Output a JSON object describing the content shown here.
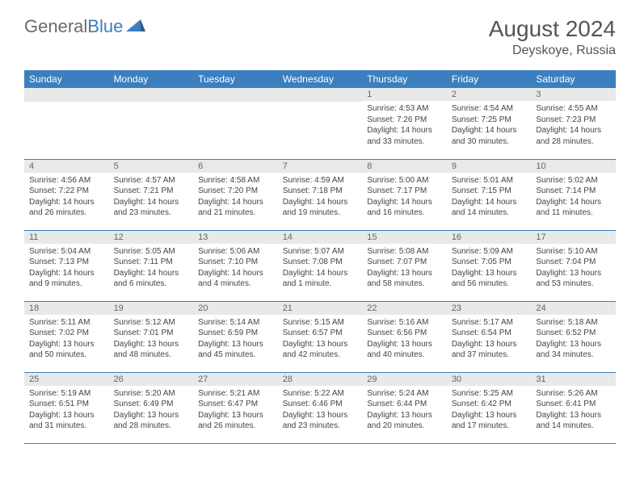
{
  "brand": {
    "part1": "General",
    "part2": "Blue"
  },
  "title": "August 2024",
  "location": "Deyskoye, Russia",
  "colors": {
    "header_bg": "#3b7fbf",
    "header_text": "#ffffff",
    "daynum_bg": "#e9e9e9",
    "row_border": "#3b7fbf",
    "body_text": "#444444",
    "brand_gray": "#6b6b6b",
    "brand_blue": "#3b7fbf"
  },
  "weekdays": [
    "Sunday",
    "Monday",
    "Tuesday",
    "Wednesday",
    "Thursday",
    "Friday",
    "Saturday"
  ],
  "weeks": [
    [
      {
        "n": ""
      },
      {
        "n": ""
      },
      {
        "n": ""
      },
      {
        "n": ""
      },
      {
        "n": "1",
        "sr": "4:53 AM",
        "ss": "7:26 PM",
        "dl": "14 hours and 33 minutes."
      },
      {
        "n": "2",
        "sr": "4:54 AM",
        "ss": "7:25 PM",
        "dl": "14 hours and 30 minutes."
      },
      {
        "n": "3",
        "sr": "4:55 AM",
        "ss": "7:23 PM",
        "dl": "14 hours and 28 minutes."
      }
    ],
    [
      {
        "n": "4",
        "sr": "4:56 AM",
        "ss": "7:22 PM",
        "dl": "14 hours and 26 minutes."
      },
      {
        "n": "5",
        "sr": "4:57 AM",
        "ss": "7:21 PM",
        "dl": "14 hours and 23 minutes."
      },
      {
        "n": "6",
        "sr": "4:58 AM",
        "ss": "7:20 PM",
        "dl": "14 hours and 21 minutes."
      },
      {
        "n": "7",
        "sr": "4:59 AM",
        "ss": "7:18 PM",
        "dl": "14 hours and 19 minutes."
      },
      {
        "n": "8",
        "sr": "5:00 AM",
        "ss": "7:17 PM",
        "dl": "14 hours and 16 minutes."
      },
      {
        "n": "9",
        "sr": "5:01 AM",
        "ss": "7:15 PM",
        "dl": "14 hours and 14 minutes."
      },
      {
        "n": "10",
        "sr": "5:02 AM",
        "ss": "7:14 PM",
        "dl": "14 hours and 11 minutes."
      }
    ],
    [
      {
        "n": "11",
        "sr": "5:04 AM",
        "ss": "7:13 PM",
        "dl": "14 hours and 9 minutes."
      },
      {
        "n": "12",
        "sr": "5:05 AM",
        "ss": "7:11 PM",
        "dl": "14 hours and 6 minutes."
      },
      {
        "n": "13",
        "sr": "5:06 AM",
        "ss": "7:10 PM",
        "dl": "14 hours and 4 minutes."
      },
      {
        "n": "14",
        "sr": "5:07 AM",
        "ss": "7:08 PM",
        "dl": "14 hours and 1 minute."
      },
      {
        "n": "15",
        "sr": "5:08 AM",
        "ss": "7:07 PM",
        "dl": "13 hours and 58 minutes."
      },
      {
        "n": "16",
        "sr": "5:09 AM",
        "ss": "7:05 PM",
        "dl": "13 hours and 56 minutes."
      },
      {
        "n": "17",
        "sr": "5:10 AM",
        "ss": "7:04 PM",
        "dl": "13 hours and 53 minutes."
      }
    ],
    [
      {
        "n": "18",
        "sr": "5:11 AM",
        "ss": "7:02 PM",
        "dl": "13 hours and 50 minutes."
      },
      {
        "n": "19",
        "sr": "5:12 AM",
        "ss": "7:01 PM",
        "dl": "13 hours and 48 minutes."
      },
      {
        "n": "20",
        "sr": "5:14 AM",
        "ss": "6:59 PM",
        "dl": "13 hours and 45 minutes."
      },
      {
        "n": "21",
        "sr": "5:15 AM",
        "ss": "6:57 PM",
        "dl": "13 hours and 42 minutes."
      },
      {
        "n": "22",
        "sr": "5:16 AM",
        "ss": "6:56 PM",
        "dl": "13 hours and 40 minutes."
      },
      {
        "n": "23",
        "sr": "5:17 AM",
        "ss": "6:54 PM",
        "dl": "13 hours and 37 minutes."
      },
      {
        "n": "24",
        "sr": "5:18 AM",
        "ss": "6:52 PM",
        "dl": "13 hours and 34 minutes."
      }
    ],
    [
      {
        "n": "25",
        "sr": "5:19 AM",
        "ss": "6:51 PM",
        "dl": "13 hours and 31 minutes."
      },
      {
        "n": "26",
        "sr": "5:20 AM",
        "ss": "6:49 PM",
        "dl": "13 hours and 28 minutes."
      },
      {
        "n": "27",
        "sr": "5:21 AM",
        "ss": "6:47 PM",
        "dl": "13 hours and 26 minutes."
      },
      {
        "n": "28",
        "sr": "5:22 AM",
        "ss": "6:46 PM",
        "dl": "13 hours and 23 minutes."
      },
      {
        "n": "29",
        "sr": "5:24 AM",
        "ss": "6:44 PM",
        "dl": "13 hours and 20 minutes."
      },
      {
        "n": "30",
        "sr": "5:25 AM",
        "ss": "6:42 PM",
        "dl": "13 hours and 17 minutes."
      },
      {
        "n": "31",
        "sr": "5:26 AM",
        "ss": "6:41 PM",
        "dl": "13 hours and 14 minutes."
      }
    ]
  ],
  "labels": {
    "sunrise": "Sunrise:",
    "sunset": "Sunset:",
    "daylight": "Daylight:"
  }
}
